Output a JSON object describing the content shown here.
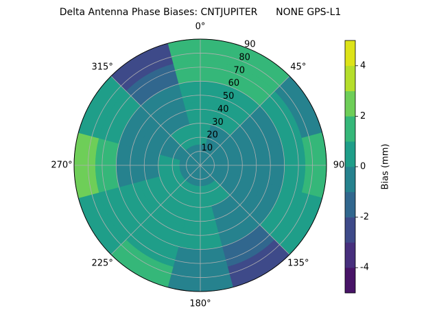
{
  "chart_data": {
    "type": "polar_contour",
    "title": "Delta Antenna Phase Biases: CNTJUPITER      NONE GPS-L1",
    "colorbar_label": "Bias (mm)",
    "rlim": [
      0,
      90
    ],
    "rticks": [
      10,
      20,
      30,
      40,
      50,
      60,
      70,
      80,
      90
    ],
    "thetaticks": [
      {
        "value": 0,
        "label": "0°"
      },
      {
        "value": 45,
        "label": "45°"
      },
      {
        "value": 90,
        "label": "90"
      },
      {
        "value": 135,
        "label": "135°"
      },
      {
        "value": 180,
        "label": "180°"
      },
      {
        "value": 225,
        "label": "225°"
      },
      {
        "value": 270,
        "label": "270°"
      },
      {
        "value": 315,
        "label": "315°"
      }
    ],
    "grid": true,
    "theta": [
      0,
      30,
      60,
      90,
      120,
      150,
      180,
      210,
      240,
      270,
      300,
      330
    ],
    "z": [
      [
        -0.5,
        -0.5,
        -0.5,
        -0.5,
        -0.5,
        -0.5,
        -0.5,
        -0.5,
        -0.5,
        -0.5,
        -0.5,
        -0.5
      ],
      [
        0.5,
        -0.5,
        -0.5,
        -0.5,
        -0.5,
        0.5,
        0.5,
        0.5,
        0.5,
        0.5,
        -0.5,
        0.5
      ],
      [
        0.5,
        0.5,
        -0.5,
        -0.5,
        -0.5,
        -0.5,
        0.5,
        0.5,
        0.5,
        -0.5,
        -0.5,
        -0.5
      ],
      [
        0.5,
        0.5,
        -0.5,
        -0.5,
        -0.5,
        -0.5,
        0.5,
        0.5,
        0.5,
        -0.5,
        -0.5,
        -0.5
      ],
      [
        1.5,
        1.5,
        0.5,
        0.5,
        0.5,
        -1.5,
        -0.5,
        0.5,
        0.5,
        1.5,
        0.5,
        -1.5
      ],
      [
        1.5,
        1.5,
        -0.5,
        1.5,
        0.5,
        -2.5,
        -0.5,
        1.5,
        0.5,
        2.5,
        0.5,
        -2.5
      ]
    ],
    "levels": [
      -5,
      -4,
      -3,
      -2,
      -1,
      0,
      1,
      2,
      3,
      4,
      5
    ],
    "colors": [
      "#481467",
      "#472f7d",
      "#3e4a89",
      "#31678e",
      "#26828e",
      "#1f9e89",
      "#35b779",
      "#6ece58",
      "#b5de2b",
      "#dde318"
    ],
    "cticks": [
      -4,
      -2,
      0,
      2,
      4
    ]
  }
}
